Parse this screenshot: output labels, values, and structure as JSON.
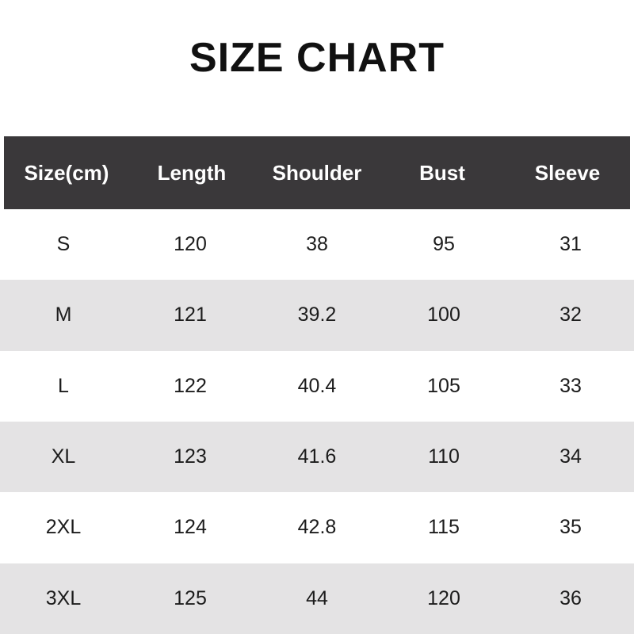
{
  "title": "SIZE CHART",
  "table": {
    "headers": [
      "Size(cm)",
      "Length",
      "Shoulder",
      "Bust",
      "Sleeve"
    ],
    "rows": [
      [
        "S",
        "120",
        "38",
        "95",
        "31"
      ],
      [
        "M",
        "121",
        "39.2",
        "100",
        "32"
      ],
      [
        "L",
        "122",
        "40.4",
        "105",
        "33"
      ],
      [
        "XL",
        "123",
        "41.6",
        "110",
        "34"
      ],
      [
        "2XL",
        "124",
        "42.8",
        "115",
        "35"
      ],
      [
        "3XL",
        "125",
        "44",
        "120",
        "36"
      ]
    ]
  },
  "colors": {
    "header_bg": "#3a383a",
    "header_text": "#ffffff",
    "row_bg": "#ffffff",
    "row_alt_bg": "#e4e3e4",
    "body_text": "#1c1c1c",
    "title_text": "#111111"
  },
  "chart_data": {
    "type": "table",
    "title": "SIZE CHART",
    "columns": [
      "Size(cm)",
      "Length",
      "Shoulder",
      "Bust",
      "Sleeve"
    ],
    "rows": [
      {
        "size": "S",
        "length": 120,
        "shoulder": 38,
        "bust": 95,
        "sleeve": 31
      },
      {
        "size": "M",
        "length": 121,
        "shoulder": 39.2,
        "bust": 100,
        "sleeve": 32
      },
      {
        "size": "L",
        "length": 122,
        "shoulder": 40.4,
        "bust": 105,
        "sleeve": 33
      },
      {
        "size": "XL",
        "length": 123,
        "shoulder": 41.6,
        "bust": 110,
        "sleeve": 34
      },
      {
        "size": "2XL",
        "length": 124,
        "shoulder": 42.8,
        "bust": 115,
        "sleeve": 35
      },
      {
        "size": "3XL",
        "length": 125,
        "shoulder": 44,
        "bust": 120,
        "sleeve": 36
      }
    ],
    "layout": {
      "unit": "cm",
      "row_striping": true,
      "header_style": "dark-bar"
    }
  }
}
